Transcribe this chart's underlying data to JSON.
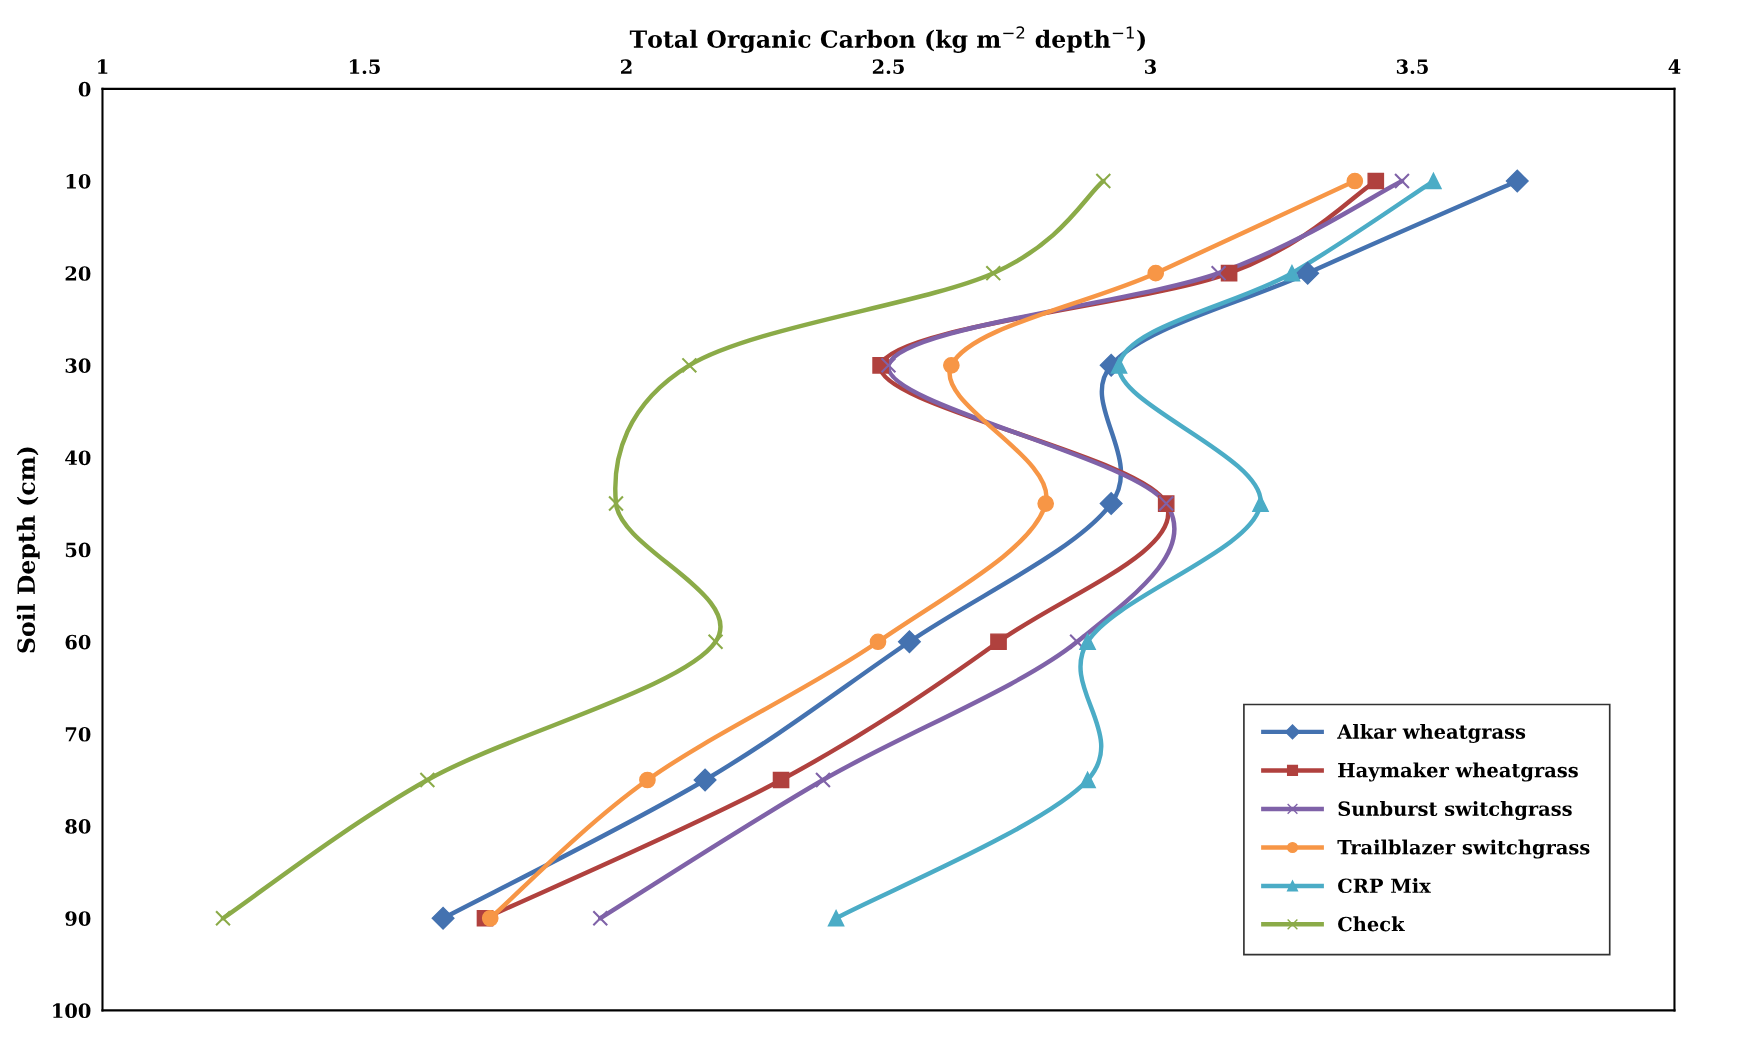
{
  "chart_data": {
    "type": "line",
    "xlabel": "Total Organic Carbon (kg m$^{−2}$ depth$^{−1}$)",
    "ylabel": "Soil Depth (cm)",
    "xlim": [
      1,
      4
    ],
    "xticks": [
      1,
      1.5,
      2,
      2.5,
      3,
      3.5,
      4
    ],
    "ylim": [
      100,
      0
    ],
    "yticks": [
      0,
      10,
      20,
      30,
      40,
      50,
      60,
      70,
      80,
      90,
      100
    ],
    "grid": false,
    "legend": "bottom right",
    "line_style": "solid",
    "series": [
      {
        "name": "Alkar wheatgrass",
        "color": "#4472b0",
        "marker": "diamond",
        "x": [
          3.7,
          3.3,
          2.925,
          2.925,
          2.54,
          2.15,
          1.65
        ],
        "values": [
          10,
          20,
          30,
          45,
          60,
          75,
          90
        ]
      },
      {
        "name": "Haymaker wheatgrass",
        "color": "#b0413e",
        "marker": "square",
        "x": [
          3.43,
          3.15,
          2.485,
          3.03,
          2.71,
          2.295,
          1.73
        ],
        "values": [
          10,
          20,
          30,
          45,
          60,
          75,
          90
        ]
      },
      {
        "name": "Sunburst switchgrass",
        "color": "#7f62a8",
        "marker": "cross",
        "x": [
          3.48,
          3.13,
          2.5,
          3.03,
          2.86,
          2.375,
          1.95
        ],
        "values": [
          10,
          20,
          30,
          45,
          60,
          75,
          90
        ]
      },
      {
        "name": "Trailblazer switchgrass",
        "color": "#f79646",
        "marker": "circle",
        "x": [
          3.39,
          3.01,
          2.62,
          2.8,
          2.48,
          2.04,
          1.74
        ],
        "values": [
          10,
          20,
          30,
          45,
          60,
          75,
          90
        ]
      },
      {
        "name": "CRP Mix",
        "color": "#4bacc6",
        "marker": "triangle",
        "x": [
          3.54,
          3.27,
          2.94,
          3.21,
          2.88,
          2.88,
          2.4
        ],
        "values": [
          10,
          20,
          30,
          45,
          60,
          75,
          90
        ]
      },
      {
        "name": "Check",
        "color": "#8bab48",
        "marker": "cross",
        "x": [
          2.91,
          2.7,
          2.12,
          1.98,
          2.17,
          1.62,
          1.23
        ],
        "values": [
          10,
          20,
          30,
          45,
          60,
          75,
          90
        ]
      }
    ]
  }
}
